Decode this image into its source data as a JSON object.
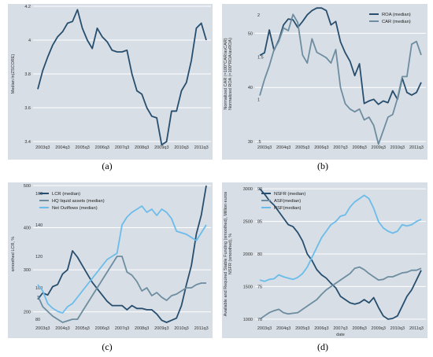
{
  "colors": {
    "dark": "#274e6e",
    "mid": "#6d8da0",
    "light": "#6bbcea",
    "panel": "#d7dee5"
  },
  "chart_data": [
    {
      "id": "a",
      "type": "line",
      "caption": "(a)",
      "xlabel": "",
      "ylabel": "Median ln(ZSCORE)",
      "xticks": [
        "2003q3",
        "2004q3",
        "2005q3",
        "2006q3",
        "2007q3",
        "2008q3",
        "2009q3",
        "2010q3",
        "2011q3"
      ],
      "yaxes": [
        {
          "side": "left",
          "ticks": [
            "3.4",
            "3.6",
            "3.8",
            "4",
            "4.2"
          ],
          "ylim": [
            3.4,
            4.2
          ]
        }
      ],
      "grid": true,
      "series": [
        {
          "name": "",
          "color": "dark",
          "axis": 0,
          "values": [
            3.71,
            3.82,
            3.9,
            3.97,
            4.02,
            4.05,
            4.1,
            4.11,
            4.18,
            4.07,
            4.0,
            3.95,
            4.07,
            4.02,
            3.99,
            3.94,
            3.93,
            3.93,
            3.94,
            3.8,
            3.7,
            3.68,
            3.6,
            3.55,
            3.54,
            3.38,
            3.4,
            3.58,
            3.58,
            3.7,
            3.75,
            3.88,
            4.07,
            4.1,
            4.0
          ]
        }
      ],
      "legend": null
    },
    {
      "id": "b",
      "type": "line",
      "caption": "(b)",
      "xlabel": "",
      "ylabel": "Normalized CAR (=100*CAR/avCAR) / Normalized ROA (=100*ROA/avROA)",
      "ylabel_outer": "Normalized CAR (=100*CAR/avCAR)",
      "ylabel_inner": "Normalized ROA (=100*ROA/avROA)",
      "xticks": [
        "2003q3",
        "2004q3",
        "2005q3",
        "2006q3",
        "2007q3",
        "2008q3",
        "2009q3",
        "2010q3",
        "2011q3"
      ],
      "yaxes": [
        {
          "side": "left-outer",
          "ticks": [
            "30",
            "40",
            "50"
          ],
          "ylim": [
            30,
            55
          ]
        },
        {
          "side": "left-inner",
          "ticks": [
            ".5",
            "1",
            "1.5",
            "2"
          ],
          "ylim": [
            0.5,
            2.1
          ]
        }
      ],
      "grid": true,
      "series": [
        {
          "name": "ROA (median)",
          "color": "dark",
          "axis": 1,
          "values": [
            1.52,
            1.55,
            1.82,
            1.58,
            1.7,
            1.88,
            1.95,
            1.94,
            1.85,
            1.92,
            2.0,
            2.05,
            2.08,
            2.08,
            2.05,
            1.88,
            1.92,
            1.68,
            1.55,
            1.45,
            1.28,
            1.42,
            0.95,
            0.98,
            1.0,
            0.94,
            0.98,
            0.96,
            1.1,
            1.0,
            1.25,
            1.08,
            1.05,
            1.08,
            1.2
          ]
        },
        {
          "name": "CAR (median)",
          "color": "mid",
          "axis": 0,
          "values": [
            38.5,
            41.5,
            44.0,
            47.0,
            48.5,
            51.0,
            50.5,
            53.5,
            52.0,
            46.0,
            44.5,
            49.0,
            46.5,
            46.0,
            45.5,
            44.5,
            47.0,
            40.0,
            37.0,
            36.0,
            35.5,
            36.0,
            34.0,
            34.5,
            33.0,
            29.5,
            32.0,
            34.5,
            35.0,
            38.0,
            42.0,
            42.0,
            48.0,
            48.5,
            46.0
          ]
        }
      ],
      "legend": "top-right"
    },
    {
      "id": "c",
      "type": "line",
      "caption": "(c)",
      "xlabel": "",
      "ylabel": "smoothed LCR, %",
      "xticks": [
        "2003q3",
        "2004q3",
        "2005q3",
        "2006q3",
        "2007q3",
        "2008q3",
        "2009q3",
        "2010q3",
        "2011q3"
      ],
      "yaxes": [
        {
          "side": "left-outer",
          "ticks": [
            "200",
            "300",
            "400",
            "500"
          ],
          "ylim": [
            175,
            500
          ]
        },
        {
          "side": "left-inner",
          "ticks": [
            "80",
            "100",
            "120",
            "140",
            "160"
          ],
          "ylim": [
            78,
            165
          ]
        }
      ],
      "grid": true,
      "series": [
        {
          "name": "LCR (median)",
          "color": "dark",
          "axis": 0,
          "values": [
            230,
            245,
            240,
            260,
            265,
            290,
            300,
            345,
            330,
            310,
            290,
            270,
            255,
            240,
            225,
            215,
            215,
            215,
            205,
            215,
            208,
            208,
            205,
            205,
            195,
            180,
            175,
            180,
            185,
            215,
            265,
            310,
            385,
            430,
            500
          ]
        },
        {
          "name": "HQ liquid assets (median)",
          "color": "mid",
          "axis": 1,
          "values": [
            95,
            88,
            85,
            82,
            80,
            78,
            79,
            80,
            80,
            85,
            90,
            95,
            100,
            105,
            110,
            115,
            120,
            120,
            110,
            108,
            104,
            98,
            100,
            95,
            97,
            94,
            92,
            95,
            96,
            98,
            100,
            100,
            102,
            103,
            103
          ]
        },
        {
          "name": "Net Outflows (median)",
          "color": "light",
          "axis": 1,
          "values": [
            102,
            98,
            90,
            87,
            85,
            84,
            88,
            90,
            94,
            98,
            102,
            106,
            110,
            114,
            118,
            120,
            122,
            140,
            145,
            148,
            150,
            152,
            148,
            150,
            146,
            150,
            148,
            144,
            136,
            135,
            134,
            132,
            130,
            135,
            140
          ]
        }
      ],
      "legend": "top-left"
    },
    {
      "id": "d",
      "type": "line",
      "caption": "(d)",
      "xlabel": "date",
      "ylabel": "Available and Required Stable Funding (smoothed), Million euros / NSFR (smoothed), %",
      "ylabel_outer": "Available and Required Stable Funding (smoothed), Million euros",
      "ylabel_inner": "NSFR (smoothed), %",
      "xticks": [
        "2003q3",
        "2004q3",
        "2005q3",
        "2006q3",
        "2007q3",
        "2008q3",
        "2009q3",
        "2010q3",
        "2011q3"
      ],
      "yaxes": [
        {
          "side": "left-outer",
          "ticks": [
            "1000",
            "1500",
            "2000",
            "2500",
            "3000"
          ],
          "ylim": [
            950,
            3050
          ]
        },
        {
          "side": "left-inner",
          "ticks": [
            "70",
            "75",
            "80",
            "85",
            "90"
          ],
          "ylim": [
            69.5,
            90.5
          ]
        }
      ],
      "grid": true,
      "series": [
        {
          "name": "NSFR (median)",
          "color": "dark",
          "axis": 1,
          "values": [
            90,
            89.2,
            88.2,
            87.5,
            86.5,
            85.5,
            84.5,
            84.2,
            83.3,
            82,
            80,
            79,
            77.6,
            76.8,
            76.3,
            75.5,
            74.8,
            73.5,
            73,
            72.5,
            72.3,
            72.5,
            73,
            72.5,
            73.3,
            71.8,
            70.5,
            70,
            70.1,
            70.5,
            72,
            73.5,
            74.5,
            76,
            77.5
          ]
        },
        {
          "name": "ASF(median)",
          "color": "mid",
          "axis": 0,
          "values": [
            1000,
            1050,
            1100,
            1130,
            1150,
            1100,
            1080,
            1090,
            1100,
            1150,
            1200,
            1250,
            1300,
            1380,
            1450,
            1500,
            1550,
            1600,
            1650,
            1700,
            1780,
            1800,
            1760,
            1700,
            1650,
            1600,
            1610,
            1650,
            1650,
            1680,
            1710,
            1720,
            1750,
            1750,
            1780
          ]
        },
        {
          "name": "RSF(median)",
          "color": "light",
          "axis": 0,
          "values": [
            1600,
            1580,
            1610,
            1620,
            1680,
            1650,
            1630,
            1610,
            1640,
            1700,
            1800,
            1950,
            2100,
            2250,
            2350,
            2450,
            2500,
            2580,
            2600,
            2720,
            2800,
            2850,
            2900,
            2850,
            2700,
            2500,
            2400,
            2350,
            2320,
            2350,
            2450,
            2430,
            2450,
            2500,
            2530
          ]
        }
      ],
      "legend": "top-left"
    }
  ]
}
